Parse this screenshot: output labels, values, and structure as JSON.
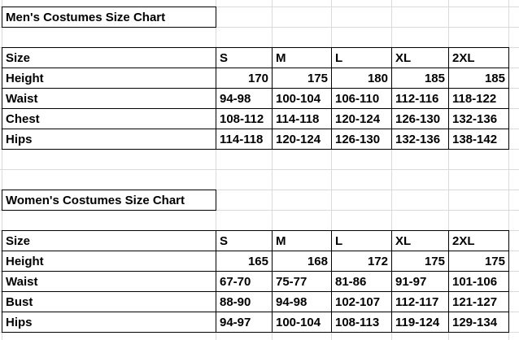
{
  "men": {
    "title": "Men's Costumes Size Chart",
    "header": [
      "Size",
      "S",
      "M",
      "L",
      "XL",
      "2XL"
    ],
    "rows": [
      {
        "label": "Height",
        "values": [
          "170",
          "175",
          "180",
          "185",
          "185"
        ]
      },
      {
        "label": "Waist",
        "values": [
          "94-98",
          "100-104",
          "106-110",
          "112-116",
          "118-122"
        ]
      },
      {
        "label": "Chest",
        "values": [
          "108-112",
          "114-118",
          "120-124",
          "126-130",
          "132-136"
        ]
      },
      {
        "label": "Hips",
        "values": [
          "114-118",
          "120-124",
          "126-130",
          "132-136",
          "138-142"
        ]
      }
    ]
  },
  "women": {
    "title": "Women's Costumes Size Chart",
    "header": [
      "Size",
      "S",
      "M",
      "L",
      "XL",
      "2XL"
    ],
    "rows": [
      {
        "label": "Height",
        "values": [
          "165",
          "168",
          "172",
          "175",
          "175"
        ]
      },
      {
        "label": "Waist",
        "values": [
          "67-70",
          "75-77",
          "81-86",
          "91-97",
          "101-106"
        ]
      },
      {
        "label": "Bust",
        "values": [
          "88-90",
          "94-98",
          "102-107",
          "112-117",
          "121-127"
        ]
      },
      {
        "label": "Hips",
        "values": [
          "94-97",
          "100-104",
          "108-113",
          "119-124",
          "129-134"
        ]
      }
    ]
  }
}
